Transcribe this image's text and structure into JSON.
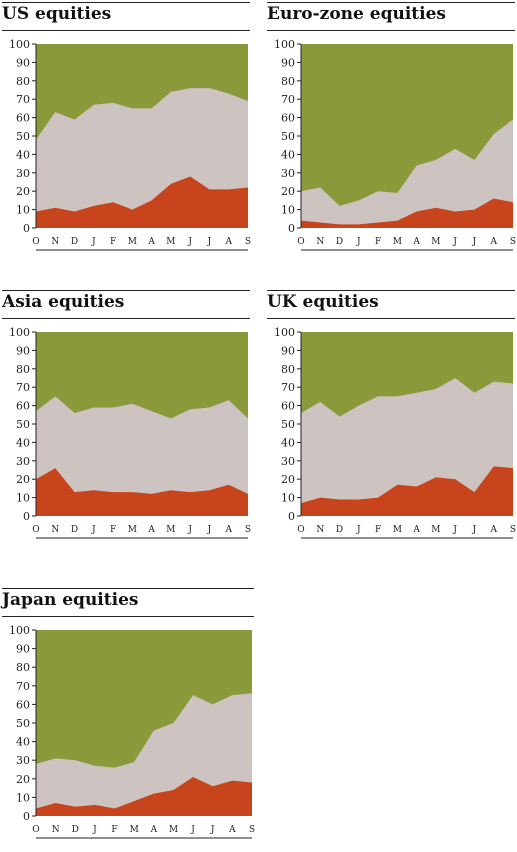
{
  "colors": {
    "bottom": "#c8441c",
    "middle": "#cdc4c2",
    "top": "#8a9a3a",
    "text": "#222222"
  },
  "chart_data": [
    {
      "type": "area",
      "title": "US equities",
      "categories": [
        "O",
        "N",
        "D",
        "J",
        "F",
        "M",
        "A",
        "M",
        "J",
        "J",
        "A",
        "S"
      ],
      "ylim": [
        0,
        100
      ],
      "yticks": [
        0,
        10,
        20,
        30,
        40,
        50,
        60,
        70,
        80,
        90,
        100
      ],
      "grid": false,
      "series": [
        {
          "values": [
            9,
            11,
            9,
            12,
            14,
            10,
            15,
            24,
            28,
            21,
            21,
            22
          ]
        },
        {
          "values": [
            48,
            63,
            59,
            67,
            68,
            65,
            65,
            74,
            76,
            76,
            73,
            69
          ]
        },
        {
          "values": [
            100,
            100,
            100,
            100,
            100,
            100,
            100,
            100,
            100,
            100,
            100,
            100
          ]
        }
      ]
    },
    {
      "type": "area",
      "title": "Euro-zone equities",
      "categories": [
        "O",
        "N",
        "D",
        "J",
        "F",
        "M",
        "A",
        "M",
        "J",
        "J",
        "A",
        "S"
      ],
      "ylim": [
        0,
        100
      ],
      "yticks": [
        0,
        10,
        20,
        30,
        40,
        50,
        60,
        70,
        80,
        90,
        100
      ],
      "grid": false,
      "series": [
        {
          "values": [
            4,
            3,
            2,
            2,
            3,
            4,
            9,
            11,
            9,
            10,
            16,
            14
          ]
        },
        {
          "values": [
            20,
            22,
            12,
            15,
            20,
            19,
            34,
            37,
            43,
            37,
            51,
            59
          ]
        },
        {
          "values": [
            100,
            100,
            100,
            100,
            100,
            100,
            100,
            100,
            100,
            100,
            100,
            100
          ]
        }
      ]
    },
    {
      "type": "area",
      "title": "Asia equities",
      "categories": [
        "O",
        "N",
        "D",
        "J",
        "F",
        "M",
        "A",
        "M",
        "J",
        "J",
        "A",
        "S"
      ],
      "ylim": [
        0,
        100
      ],
      "yticks": [
        0,
        10,
        20,
        30,
        40,
        50,
        60,
        70,
        80,
        90,
        100
      ],
      "grid": false,
      "series": [
        {
          "values": [
            20,
            26,
            13,
            14,
            13,
            13,
            12,
            14,
            13,
            14,
            17,
            12
          ]
        },
        {
          "values": [
            57,
            65,
            56,
            59,
            59,
            61,
            57,
            53,
            58,
            59,
            63,
            53
          ]
        },
        {
          "values": [
            100,
            100,
            100,
            100,
            100,
            100,
            100,
            100,
            100,
            100,
            100,
            100
          ]
        }
      ]
    },
    {
      "type": "area",
      "title": "UK equities",
      "categories": [
        "O",
        "N",
        "D",
        "J",
        "F",
        "M",
        "A",
        "M",
        "J",
        "J",
        "A",
        "S"
      ],
      "ylim": [
        0,
        100
      ],
      "yticks": [
        0,
        10,
        20,
        30,
        40,
        50,
        60,
        70,
        80,
        90,
        100
      ],
      "grid": false,
      "series": [
        {
          "values": [
            7,
            10,
            9,
            9,
            10,
            17,
            16,
            21,
            20,
            13,
            27,
            26
          ]
        },
        {
          "values": [
            56,
            62,
            54,
            60,
            65,
            65,
            67,
            69,
            75,
            67,
            73,
            72
          ]
        },
        {
          "values": [
            100,
            100,
            100,
            100,
            100,
            100,
            100,
            100,
            100,
            100,
            100,
            100
          ]
        }
      ]
    },
    {
      "type": "area",
      "title": "Japan equities",
      "categories": [
        "O",
        "N",
        "D",
        "J",
        "F",
        "M",
        "A",
        "M",
        "J",
        "J",
        "A",
        "S"
      ],
      "ylim": [
        0,
        100
      ],
      "yticks": [
        0,
        10,
        20,
        30,
        40,
        50,
        60,
        70,
        80,
        90,
        100
      ],
      "grid": false,
      "series": [
        {
          "values": [
            4,
            7,
            5,
            6,
            4,
            8,
            12,
            14,
            21,
            16,
            19,
            18
          ]
        },
        {
          "values": [
            28,
            31,
            30,
            27,
            26,
            29,
            46,
            50,
            65,
            60,
            65,
            66
          ]
        },
        {
          "values": [
            100,
            100,
            100,
            100,
            100,
            100,
            100,
            100,
            100,
            100,
            100,
            100
          ]
        }
      ]
    }
  ]
}
